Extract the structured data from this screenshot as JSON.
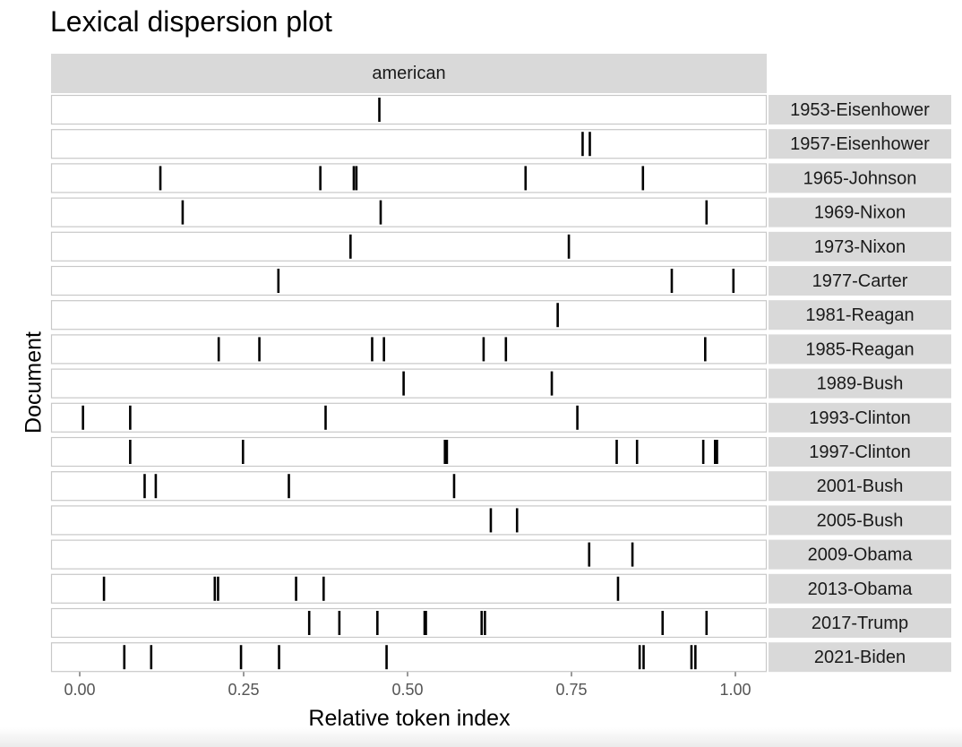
{
  "chart_data": {
    "type": "lexical-dispersion",
    "title": "Lexical dispersion plot",
    "facet": "american",
    "xlabel": "Relative token index",
    "ylabel": "Document",
    "xlim": [
      -0.04,
      1.05
    ],
    "x_ticks": [
      "0.00",
      "0.25",
      "0.50",
      "0.75",
      "1.00"
    ],
    "x_tick_values": [
      0,
      0.25,
      0.5,
      0.75,
      1.0
    ],
    "grid": false,
    "rows": [
      {
        "document": "1953-Eisenhower",
        "positions": [
          0.457
        ]
      },
      {
        "document": "1957-Eisenhower",
        "positions": [
          0.767,
          0.778
        ]
      },
      {
        "document": "1965-Johnson",
        "positions": [
          0.123,
          0.367,
          0.418,
          0.422,
          0.68,
          0.859
        ]
      },
      {
        "document": "1969-Nixon",
        "positions": [
          0.157,
          0.459,
          0.956
        ]
      },
      {
        "document": "1973-Nixon",
        "positions": [
          0.413,
          0.746
        ]
      },
      {
        "document": "1977-Carter",
        "positions": [
          0.303,
          0.903,
          0.997
        ]
      },
      {
        "document": "1981-Reagan",
        "positions": [
          0.729
        ]
      },
      {
        "document": "1985-Reagan",
        "positions": [
          0.212,
          0.274,
          0.446,
          0.464,
          0.616,
          0.65,
          0.954
        ]
      },
      {
        "document": "1989-Bush",
        "positions": [
          0.494,
          0.72
        ]
      },
      {
        "document": "1993-Clinton",
        "positions": [
          0.005,
          0.077,
          0.375,
          0.759
        ]
      },
      {
        "document": "1997-Clinton",
        "positions": [
          0.077,
          0.249,
          0.557,
          0.56,
          0.819,
          0.85,
          0.951,
          0.969,
          0.972
        ]
      },
      {
        "document": "2001-Bush",
        "positions": [
          0.099,
          0.116,
          0.319,
          0.571
        ]
      },
      {
        "document": "2005-Bush",
        "positions": [
          0.627,
          0.667
        ]
      },
      {
        "document": "2009-Obama",
        "positions": [
          0.777,
          0.843
        ]
      },
      {
        "document": "2013-Obama",
        "positions": [
          0.037,
          0.206,
          0.211,
          0.33,
          0.372,
          0.821
        ]
      },
      {
        "document": "2017-Trump",
        "positions": [
          0.35,
          0.396,
          0.454,
          0.526,
          0.528,
          0.613,
          0.618,
          0.889,
          0.956
        ]
      },
      {
        "document": "2021-Biden",
        "positions": [
          0.068,
          0.109,
          0.246,
          0.304,
          0.468,
          0.854,
          0.86,
          0.933,
          0.939
        ]
      }
    ]
  },
  "colors": {
    "strip_fill": "#d9d9d9",
    "panel_border": "#c8c8c8",
    "mark": "#000000",
    "tick_text": "#555555"
  }
}
